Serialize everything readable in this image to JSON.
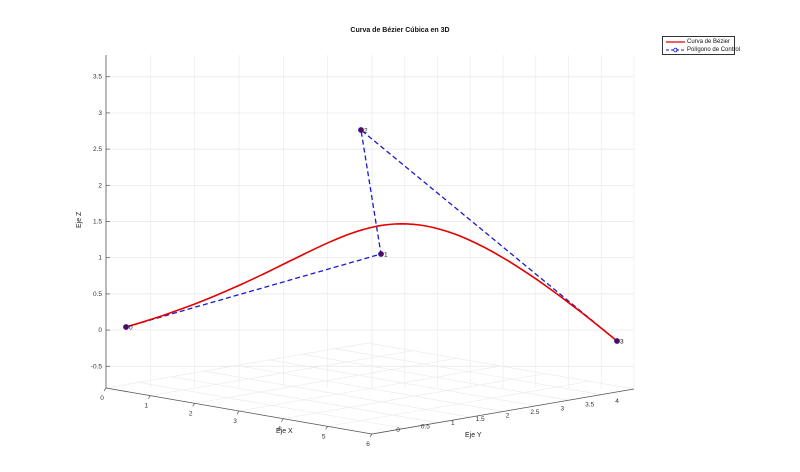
{
  "chart_data": {
    "type": "line",
    "title": "Curva de Bézier Cúbica en 3D",
    "xlabel": "Eje X",
    "ylabel": "Eje Y",
    "zlabel": "Eje Z",
    "xticks": [
      "0",
      "1",
      "2",
      "3",
      "4",
      "5",
      "6"
    ],
    "yticks": [
      "0",
      "0.5",
      "1",
      "1.5",
      "2",
      "2.5",
      "3",
      "3.5",
      "4"
    ],
    "zticks": [
      "-0.5",
      "0",
      "0.5",
      "1",
      "1.5",
      "2",
      "2.5",
      "3",
      "3.5"
    ],
    "zlim": [
      -0.8,
      3.8
    ],
    "grid": true,
    "legend_position": "top-right",
    "series": [
      {
        "name": "Curva de Bézier",
        "color": "#e60000",
        "style": "solid"
      },
      {
        "name": "Polígono de Control",
        "color": "#1a1acc",
        "style": "dashed",
        "marker": "circle"
      }
    ],
    "control_points": [
      {
        "label": "0",
        "z": 0
      },
      {
        "label": "1",
        "z": 1
      },
      {
        "label": "2",
        "z": 2.8
      },
      {
        "label": "3",
        "z": -0.2
      }
    ]
  }
}
